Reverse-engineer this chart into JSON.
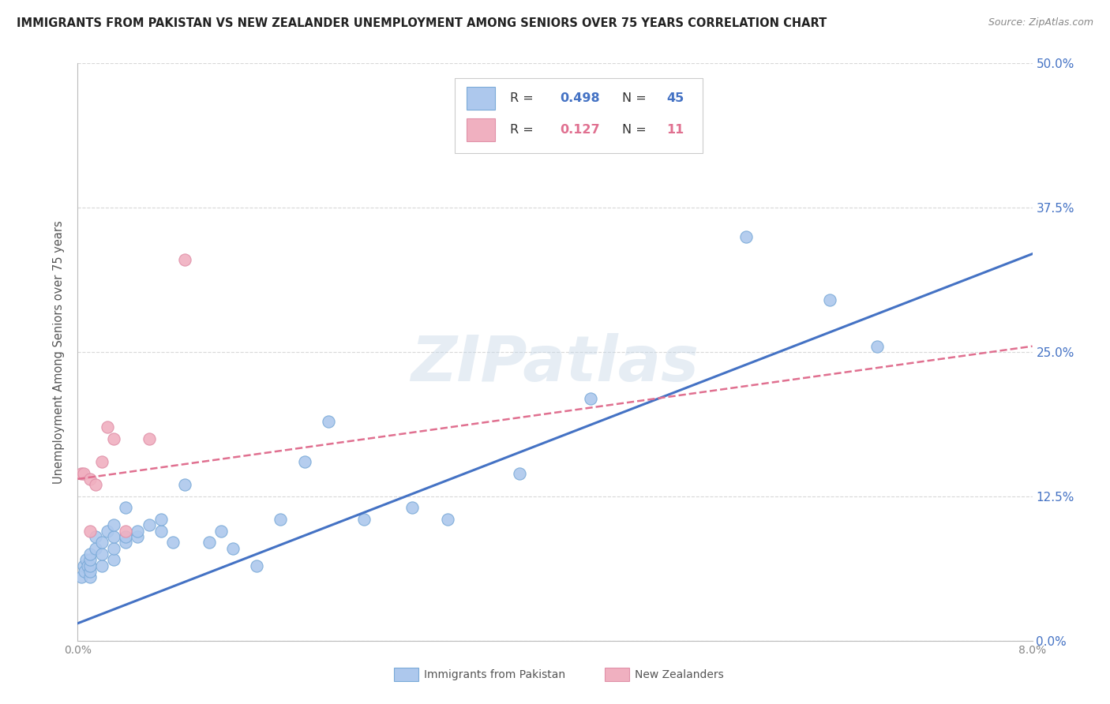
{
  "title": "IMMIGRANTS FROM PAKISTAN VS NEW ZEALANDER UNEMPLOYMENT AMONG SENIORS OVER 75 YEARS CORRELATION CHART",
  "source": "Source: ZipAtlas.com",
  "ylabel": "Unemployment Among Seniors over 75 years",
  "x_min": 0.0,
  "x_max": 0.08,
  "y_min": 0.0,
  "y_max": 0.5,
  "x_ticks": [
    0.0,
    0.01,
    0.02,
    0.03,
    0.04,
    0.05,
    0.06,
    0.07,
    0.08
  ],
  "y_ticks": [
    0.0,
    0.125,
    0.25,
    0.375,
    0.5
  ],
  "pakistan_scatter_x": [
    0.0003,
    0.0005,
    0.0006,
    0.0007,
    0.0008,
    0.001,
    0.001,
    0.001,
    0.001,
    0.001,
    0.0015,
    0.0015,
    0.002,
    0.002,
    0.002,
    0.0025,
    0.003,
    0.003,
    0.003,
    0.003,
    0.004,
    0.004,
    0.004,
    0.005,
    0.005,
    0.006,
    0.007,
    0.007,
    0.008,
    0.009,
    0.011,
    0.012,
    0.013,
    0.015,
    0.017,
    0.019,
    0.021,
    0.024,
    0.028,
    0.031,
    0.037,
    0.043,
    0.056,
    0.063,
    0.067
  ],
  "pakistan_scatter_y": [
    0.055,
    0.065,
    0.06,
    0.07,
    0.065,
    0.055,
    0.06,
    0.065,
    0.07,
    0.075,
    0.08,
    0.09,
    0.065,
    0.075,
    0.085,
    0.095,
    0.07,
    0.08,
    0.09,
    0.1,
    0.085,
    0.09,
    0.115,
    0.09,
    0.095,
    0.1,
    0.095,
    0.105,
    0.085,
    0.135,
    0.085,
    0.095,
    0.08,
    0.065,
    0.105,
    0.155,
    0.19,
    0.105,
    0.115,
    0.105,
    0.145,
    0.21,
    0.35,
    0.295,
    0.255
  ],
  "nz_scatter_x": [
    0.0003,
    0.0005,
    0.001,
    0.001,
    0.0015,
    0.002,
    0.0025,
    0.003,
    0.004,
    0.006,
    0.009
  ],
  "nz_scatter_y": [
    0.145,
    0.145,
    0.095,
    0.14,
    0.135,
    0.155,
    0.185,
    0.175,
    0.095,
    0.175,
    0.33
  ],
  "pakistan_line_x": [
    0.0,
    0.08
  ],
  "pakistan_line_y": [
    0.015,
    0.335
  ],
  "nz_line_x": [
    0.0,
    0.08
  ],
  "nz_line_y": [
    0.14,
    0.255
  ],
  "pakistan_line_color": "#4472c4",
  "nz_line_color": "#e07090",
  "pakistan_dot_color": "#adc8ed",
  "nz_dot_color": "#f0b0c0",
  "pakistan_dot_edge": "#7aaad8",
  "nz_dot_edge": "#e090a8",
  "watermark": "ZIPatlas",
  "background_color": "#ffffff",
  "grid_color": "#d8d8d8",
  "title_color": "#222222",
  "axis_label_color": "#555555",
  "right_tick_color": "#4472c4",
  "legend_box_color": "#cccccc"
}
